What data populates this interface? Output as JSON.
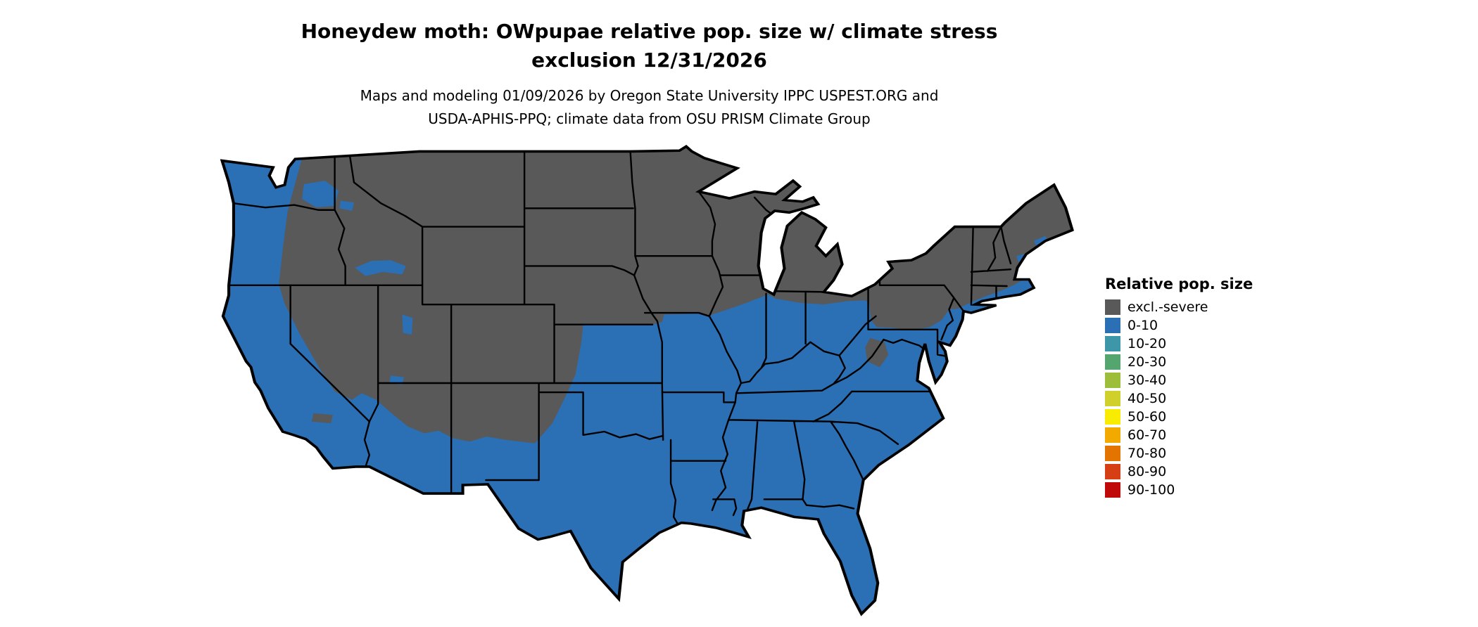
{
  "header": {
    "title_line1": "Honeydew moth: OWpupae relative pop. size w/ climate stress",
    "title_line2": "exclusion 12/31/2026",
    "subtitle_line1": "Maps and modeling 01/09/2026 by Oregon State University IPPC USPEST.ORG and",
    "subtitle_line2": "USDA-APHIS-PPQ; climate data from OSU PRISM Climate Group"
  },
  "legend": {
    "title": "Relative pop. size",
    "entries": [
      {
        "label": "excl.-severe",
        "color": "#595959"
      },
      {
        "label": "0-10",
        "color": "#2B6FB5"
      },
      {
        "label": "10-20",
        "color": "#3E97A8"
      },
      {
        "label": "20-30",
        "color": "#55A56E"
      },
      {
        "label": "30-40",
        "color": "#9CBE3B"
      },
      {
        "label": "40-50",
        "color": "#CFD02B"
      },
      {
        "label": "50-60",
        "color": "#F8EC00"
      },
      {
        "label": "60-70",
        "color": "#F2A900"
      },
      {
        "label": "70-80",
        "color": "#E37400"
      },
      {
        "label": "80-90",
        "color": "#D63F14"
      },
      {
        "label": "90-100",
        "color": "#C00A0A"
      }
    ]
  },
  "map": {
    "background": "#FFFFFF",
    "border_color": "#000000",
    "region_fills": {
      "exclusion": "#595959",
      "low": "#2B6FB5"
    },
    "visible_classes": [
      "excl.-severe",
      "0-10"
    ],
    "description": "Contiguous United States choropleth: northern and interior mountain states shaded excl.-severe gray; Pacific coast, Southwest, southern Plains, Southeast and mid-Atlantic shaded 0-10 blue; state boundaries in black"
  }
}
